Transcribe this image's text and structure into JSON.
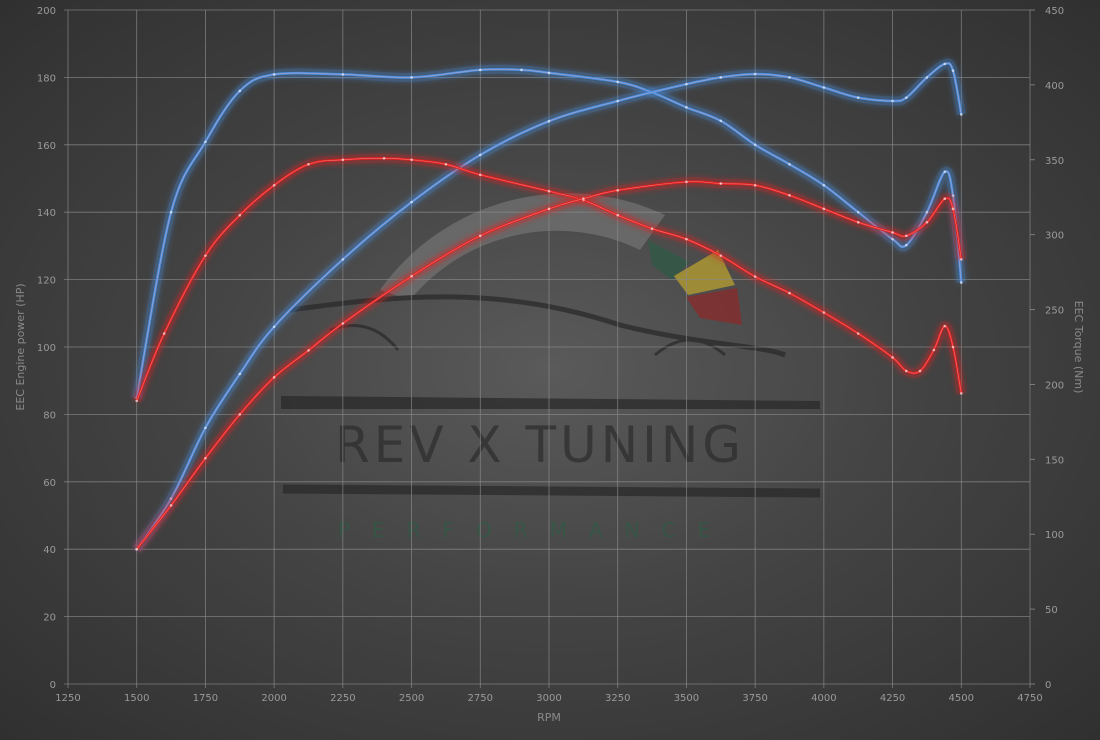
{
  "logo": {
    "line1": "REV X TUNING",
    "line2": "PERFORMANCE"
  },
  "chart_data": {
    "type": "line",
    "title": "",
    "xlabel": "RPM",
    "ylabel": "EEC Engine power (HP)",
    "y2label": "EEC Torque (Nm)",
    "xlim": [
      1250,
      4750
    ],
    "ylim": [
      0,
      200
    ],
    "y2lim": [
      0,
      450
    ],
    "xticks": [
      1250,
      1500,
      1750,
      2000,
      2250,
      2500,
      2750,
      3000,
      3250,
      3500,
      3750,
      4000,
      4250,
      4500,
      4750
    ],
    "yticks": [
      0,
      20,
      40,
      60,
      80,
      100,
      120,
      140,
      160,
      180,
      200
    ],
    "y2ticks": [
      0,
      50,
      100,
      150,
      200,
      250,
      300,
      350,
      400,
      450
    ],
    "grid": true,
    "legend": "none",
    "colors": {
      "tuned": "#4a90e2",
      "stock": "#e02020"
    },
    "series": [
      {
        "axis": "right",
        "color": "#4a90e2",
        "x": [
          1500,
          1625,
          1750,
          1875,
          2000,
          2250,
          2500,
          2750,
          2900,
          3000,
          3250,
          3375,
          3500,
          3625,
          3750,
          3875,
          4000,
          4125,
          4250,
          4300,
          4375,
          4440,
          4470,
          4500
        ],
        "y": [
          191,
          315,
          362,
          396,
          407,
          407,
          405,
          410,
          410,
          408,
          402,
          395,
          385,
          376,
          360,
          347,
          333,
          315,
          297,
          293,
          315,
          342,
          326,
          268
        ]
      },
      {
        "axis": "left",
        "color": "#4a90e2",
        "x": [
          1500,
          1625,
          1750,
          1875,
          2000,
          2250,
          2500,
          2750,
          3000,
          3250,
          3500,
          3625,
          3750,
          3875,
          4000,
          4125,
          4250,
          4300,
          4375,
          4440,
          4470,
          4500
        ],
        "y": [
          40,
          55,
          76,
          92,
          106,
          126,
          143,
          157,
          167,
          173,
          178,
          180,
          181,
          180,
          177,
          174,
          173,
          174,
          180,
          184,
          182,
          169
        ]
      },
      {
        "axis": "right",
        "color": "#e02020",
        "x": [
          1500,
          1600,
          1750,
          1875,
          2000,
          2125,
          2250,
          2400,
          2500,
          2625,
          2750,
          3000,
          3125,
          3250,
          3375,
          3500,
          3625,
          3750,
          3875,
          4000,
          4125,
          4250,
          4300,
          4350,
          4400,
          4440,
          4470,
          4500
        ],
        "y": [
          189,
          234,
          286,
          313,
          333,
          347,
          350,
          351,
          350,
          347,
          340,
          329,
          323,
          313,
          304,
          297,
          286,
          272,
          261,
          248,
          234,
          218,
          209,
          209,
          223,
          239,
          225,
          194
        ]
      },
      {
        "axis": "left",
        "color": "#e02020",
        "x": [
          1500,
          1625,
          1750,
          1875,
          2000,
          2125,
          2250,
          2500,
          2750,
          3000,
          3125,
          3250,
          3500,
          3625,
          3750,
          3875,
          4000,
          4125,
          4250,
          4300,
          4375,
          4440,
          4470,
          4500
        ],
        "y": [
          40,
          53,
          67,
          80,
          91,
          99,
          107,
          121,
          133,
          141,
          144,
          146.5,
          149,
          148.5,
          148,
          145,
          141,
          137,
          134,
          133,
          137,
          144,
          141,
          126
        ]
      }
    ]
  }
}
